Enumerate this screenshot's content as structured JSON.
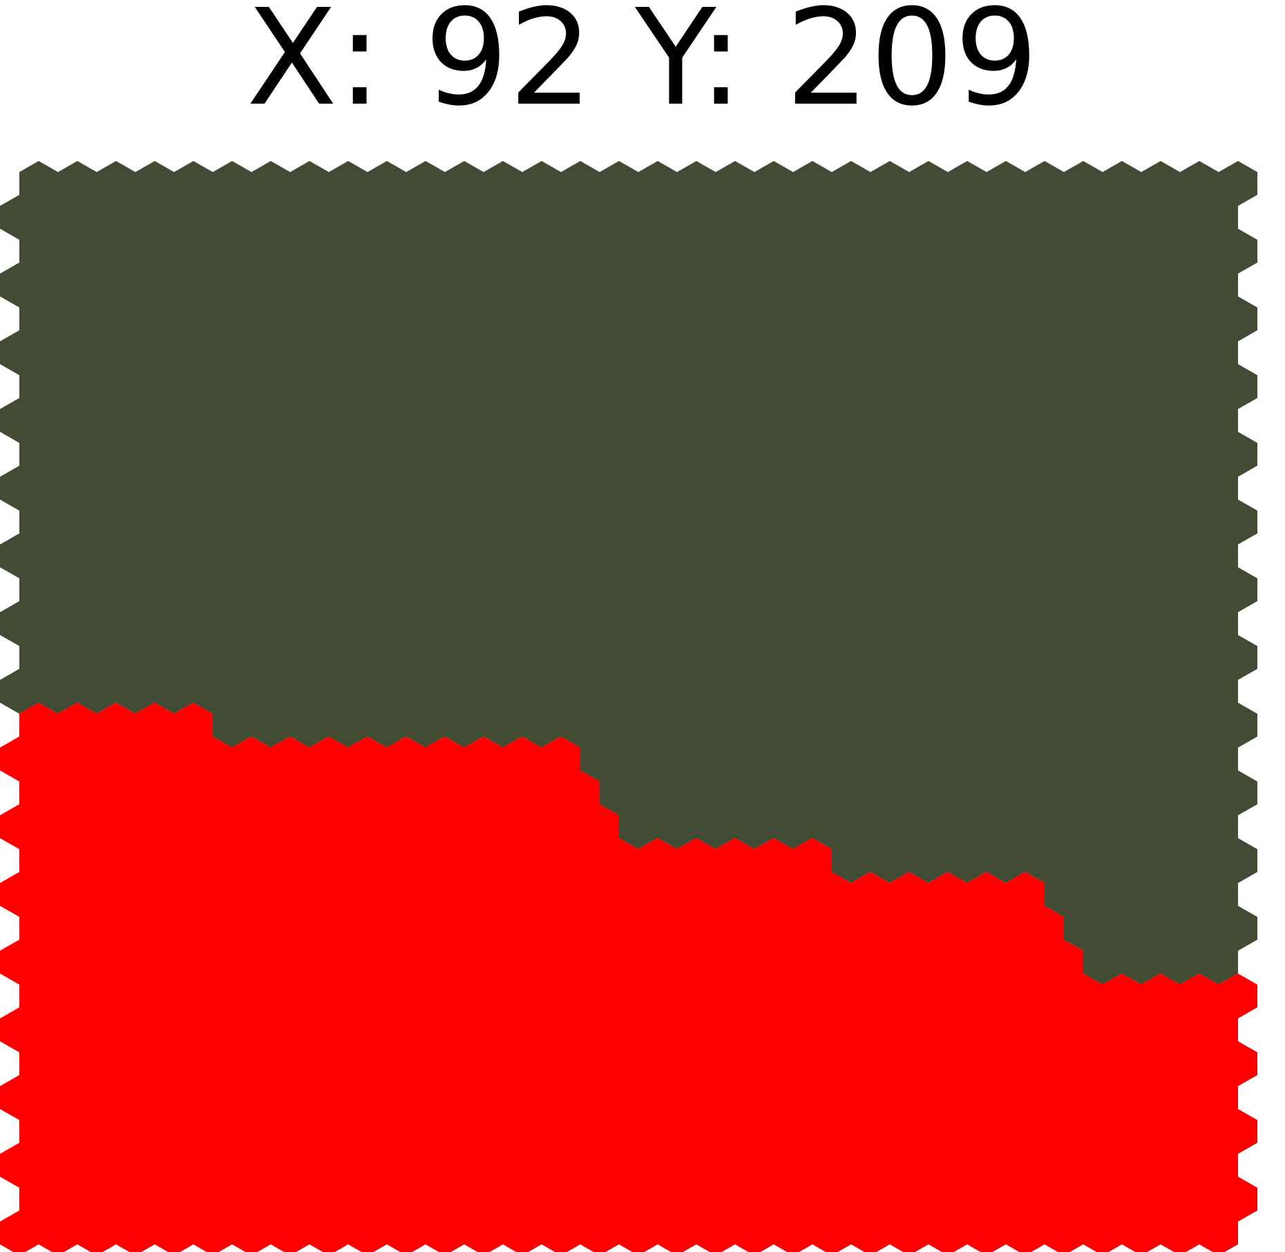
{
  "readout": {
    "x_label": "X:",
    "x_value": "92",
    "y_label": "Y:",
    "y_value": "209"
  },
  "board": {
    "colors": {
      "upper_region": "#424C34",
      "lower_region": "#FF0000",
      "background": "#FFFFFF"
    },
    "upper_region_name": "dark-green-territory",
    "lower_region_name": "red-territory"
  }
}
